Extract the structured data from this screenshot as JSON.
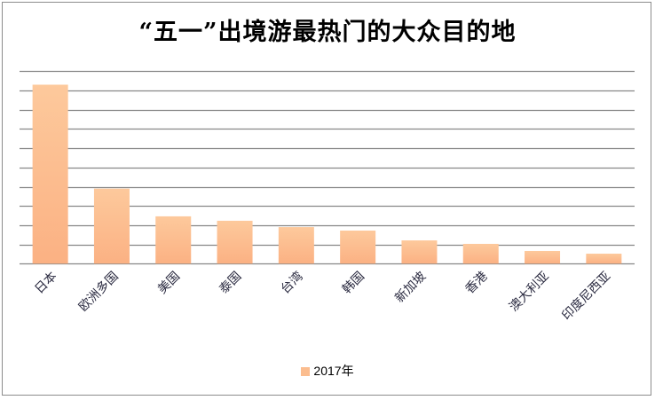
{
  "chart_data": {
    "type": "bar",
    "title": "“五一”出境游最热门的大众目的地",
    "categories": [
      "日本",
      "欧洲多国",
      "美国",
      "泰国",
      "台湾",
      "韩国",
      "新加坡",
      "香港",
      "澳大利亚",
      "印度尼西亚"
    ],
    "series": [
      {
        "name": "2017年",
        "values": [
          9.3,
          3.9,
          2.46,
          2.23,
          1.9,
          1.72,
          1.21,
          1.03,
          0.66,
          0.52
        ]
      }
    ],
    "xlabel": "",
    "ylabel": "",
    "ylim": [
      0,
      10
    ],
    "y_gridlines": 10,
    "y_tick_labels_shown": false,
    "grid": true,
    "legend": "bottom",
    "colors": {
      "bar_top": "#fdc99c",
      "bar_bottom": "#fbb183",
      "grid": "#878787"
    }
  }
}
